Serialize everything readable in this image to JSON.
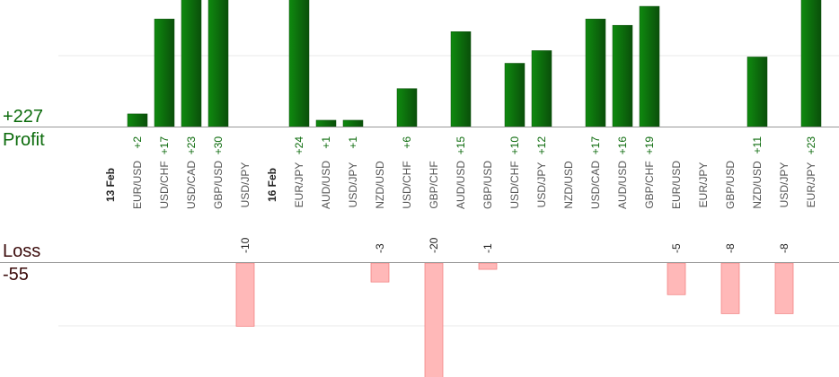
{
  "summary": {
    "profit_total": "+227",
    "profit_label": "Profit",
    "loss_label": "Loss",
    "loss_total": "-55"
  },
  "colors": {
    "profit_bar_dark": "#0a4f0a",
    "profit_bar_light": "#0f8a0f",
    "profit_text": "#0a6a0a",
    "loss_bar_fill": "#ffb8b8",
    "loss_bar_edge": "#f07a7a",
    "loss_text": "#3a0a0a",
    "axis": "#999999",
    "grid": "#e8e8e8",
    "category_text": "#555555"
  },
  "chart_data": {
    "type": "bar",
    "scale_max": 30,
    "groups": [
      {
        "date": "13 Feb",
        "items": [
          {
            "pair": "EUR/USD",
            "value": 2
          },
          {
            "pair": "USD/CHF",
            "value": 17
          },
          {
            "pair": "USD/CAD",
            "value": 23
          },
          {
            "pair": "GBP/USD",
            "value": 30
          },
          {
            "pair": "USD/JPY",
            "value": -10
          }
        ]
      },
      {
        "date": "16 Feb",
        "items": [
          {
            "pair": "EUR/JPY",
            "value": 24
          },
          {
            "pair": "AUD/USD",
            "value": 1
          },
          {
            "pair": "USD/JPY",
            "value": 1
          },
          {
            "pair": "NZD/USD",
            "value": -3
          },
          {
            "pair": "USD/CHF",
            "value": 6
          },
          {
            "pair": "GBP/CHF",
            "value": -20
          },
          {
            "pair": "AUD/USD",
            "value": 15
          },
          {
            "pair": "GBP/USD",
            "value": -1
          },
          {
            "pair": "USD/CHF",
            "value": 10
          },
          {
            "pair": "USD/JPY",
            "value": 12
          },
          {
            "pair": "NZD/USD",
            "value": 0
          },
          {
            "pair": "USD/CAD",
            "value": 17
          },
          {
            "pair": "AUD/USD",
            "value": 16
          },
          {
            "pair": "GBP/CHF",
            "value": 19
          },
          {
            "pair": "EUR/USD",
            "value": -5
          },
          {
            "pair": "EUR/JPY",
            "value": 0
          },
          {
            "pair": "GBP/USD",
            "value": -8
          },
          {
            "pair": "NZD/USD",
            "value": 11
          },
          {
            "pair": "USD/JPY",
            "value": -8
          },
          {
            "pair": "EUR/JPY",
            "value": 23
          }
        ]
      }
    ]
  }
}
